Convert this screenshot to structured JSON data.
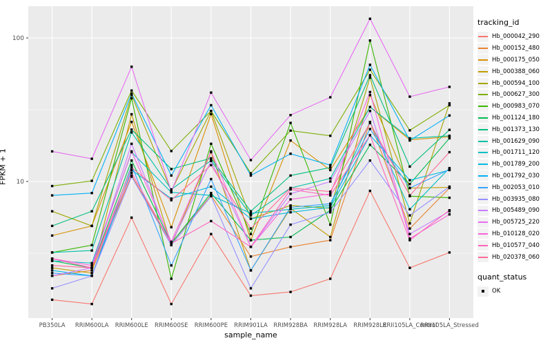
{
  "colors": {
    "panel_bg": "#EBEBEB",
    "grid_major": "#FFFFFF",
    "grid_minor": "#FAFAFA",
    "tick_label": "#4D4D4D",
    "tick_mark": "#333333",
    "legend_key_bg": "#F2F2F2",
    "point": "#000000"
  },
  "chart_data": {
    "type": "line",
    "title": "",
    "xlabel": "sample_name",
    "ylabel": "FPKM + 1",
    "y_scale": "log10",
    "y_ticks": [
      10,
      100
    ],
    "y_minor_ticks": [
      3.162,
      31.623
    ],
    "ylim": [
      1.1,
      160
    ],
    "grid": "on",
    "legend_position": "right",
    "legend_title": "tracking_id",
    "point_marker": "small black square",
    "categories": [
      "PB350LA",
      "RRIM600LA",
      "RRIM600LE",
      "RRIM600SE",
      "RRIM600PE",
      "RRIM901LA",
      "RRIM928BA",
      "RRIM928LA",
      "RRIM928LE",
      "RRII105LA_Control",
      "RRII105LA_Stressed"
    ],
    "series": [
      {
        "name": "Hb_000042_290",
        "color": "#F8766D",
        "values": [
          1.5,
          1.4,
          5.6,
          1.4,
          4.3,
          1.6,
          1.7,
          2.1,
          8.6,
          2.5,
          3.2
        ]
      },
      {
        "name": "Hb_000152_480",
        "color": "#EA8331",
        "values": [
          2.2,
          2.4,
          11.0,
          3.7,
          8.0,
          3.0,
          3.5,
          3.9,
          26.0,
          4.7,
          9.0
        ]
      },
      {
        "name": "Hb_000175_050",
        "color": "#D89000",
        "values": [
          4.2,
          4.9,
          26.0,
          4.8,
          29.5,
          3.9,
          19.3,
          12.0,
          33.0,
          19.5,
          20.5
        ]
      },
      {
        "name": "Hb_000388_060",
        "color": "#C09B00",
        "values": [
          2.5,
          2.3,
          29.4,
          3.6,
          16.0,
          2.4,
          6.5,
          4.1,
          40.0,
          9.0,
          9.1
        ]
      },
      {
        "name": "Hb_000594_100",
        "color": "#A3A500",
        "values": [
          6.2,
          4.9,
          40.0,
          8.6,
          31.0,
          5.5,
          6.8,
          6.5,
          53.0,
          5.1,
          35.0
        ]
      },
      {
        "name": "Hb_000627_300",
        "color": "#7CAE00",
        "values": [
          9.3,
          10.1,
          43.0,
          16.3,
          31.0,
          11.4,
          22.6,
          20.8,
          60.0,
          22.7,
          34.0
        ]
      },
      {
        "name": "Hb_000983_070",
        "color": "#39B600",
        "values": [
          3.2,
          3.6,
          38.0,
          2.1,
          18.3,
          4.3,
          25.6,
          5.0,
          96.0,
          7.9,
          7.7
        ]
      },
      {
        "name": "Hb_001124_180",
        "color": "#00BB4E",
        "values": [
          2.8,
          2.5,
          14.0,
          3.7,
          8.3,
          3.9,
          4.1,
          6.3,
          18.0,
          9.6,
          20.0
        ]
      },
      {
        "name": "Hb_001373_130",
        "color": "#00BF7D",
        "values": [
          4.9,
          6.2,
          23.0,
          12.2,
          14.5,
          6.2,
          11.0,
          12.5,
          55.0,
          12.7,
          22.9
        ]
      },
      {
        "name": "Hb_001629_090",
        "color": "#00C1A3",
        "values": [
          3.2,
          3.3,
          22.0,
          8.8,
          14.0,
          5.8,
          9.0,
          10.5,
          33.0,
          20.0,
          20.8
        ]
      },
      {
        "name": "Hb_001711_120",
        "color": "#00BFC4",
        "values": [
          2.8,
          2.7,
          16.0,
          8.4,
          8.0,
          6.0,
          6.4,
          6.8,
          26.0,
          6.4,
          12.4
        ]
      },
      {
        "name": "Hb_001789_200",
        "color": "#00BAE0",
        "values": [
          2.4,
          2.2,
          12.0,
          7.6,
          9.2,
          5.5,
          6.1,
          6.6,
          21.0,
          10.2,
          12.0
        ]
      },
      {
        "name": "Hb_001792_030",
        "color": "#00B0F6",
        "values": [
          8.0,
          8.3,
          41.0,
          11.0,
          34.0,
          11.0,
          15.6,
          13.0,
          65.0,
          19.3,
          28.8
        ]
      },
      {
        "name": "Hb_002053_010",
        "color": "#35A2FF",
        "values": [
          2.3,
          2.2,
          13.0,
          2.6,
          10.4,
          2.4,
          6.6,
          7.0,
          23.2,
          9.0,
          12.1
        ]
      },
      {
        "name": "Hb_003935_080",
        "color": "#9590FF",
        "values": [
          1.8,
          2.2,
          10.8,
          3.6,
          7.9,
          1.8,
          5.0,
          6.1,
          14.0,
          5.8,
          9.2
        ]
      },
      {
        "name": "Hb_005489_090",
        "color": "#C77CFF",
        "values": [
          2.2,
          2.5,
          18.3,
          3.7,
          13.9,
          3.5,
          8.2,
          10.0,
          31.0,
          4.3,
          6.2
        ]
      },
      {
        "name": "Hb_005725_220",
        "color": "#E76BF3",
        "values": [
          16.2,
          14.4,
          63.0,
          8.5,
          41.6,
          14.1,
          29.0,
          38.6,
          136.0,
          39.0,
          45.6
        ]
      },
      {
        "name": "Hb_010128_020",
        "color": "#FA62DB",
        "values": [
          2.9,
          2.6,
          16.2,
          3.8,
          16.2,
          3.5,
          7.5,
          8.2,
          42.0,
          4.0,
          5.9
        ]
      },
      {
        "name": "Hb_010577_040",
        "color": "#FF62BC",
        "values": [
          2.9,
          2.5,
          11.5,
          3.7,
          5.3,
          3.5,
          8.8,
          8.0,
          21.0,
          3.9,
          6.3
        ]
      },
      {
        "name": "Hb_020378_060",
        "color": "#FF6A98",
        "values": [
          2.6,
          2.5,
          12.5,
          7.4,
          13.0,
          4.7,
          9.0,
          8.5,
          25.5,
          8.0,
          16.0
        ]
      }
    ],
    "shape_legend": {
      "title": "quant_status",
      "items": [
        {
          "label": "OK",
          "marker": "square",
          "color": "#000000"
        }
      ]
    }
  }
}
